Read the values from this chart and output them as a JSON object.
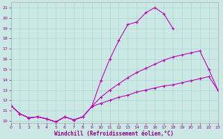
{
  "xlabel": "Windchill (Refroidissement éolien,°C)",
  "bg_color": "#cce8e4",
  "line_color": "#bb00bb",
  "xlim": [
    0,
    23
  ],
  "ylim": [
    9.8,
    21.5
  ],
  "xticks": [
    0,
    1,
    2,
    3,
    4,
    5,
    6,
    7,
    8,
    9,
    10,
    11,
    12,
    13,
    14,
    15,
    16,
    17,
    18,
    19,
    20,
    21,
    22,
    23
  ],
  "yticks": [
    10,
    11,
    12,
    13,
    14,
    15,
    16,
    17,
    18,
    19,
    20,
    21
  ],
  "grid_color": "#aad8d0",
  "curve1_x": [
    0,
    1,
    2,
    3,
    4,
    5,
    6,
    7,
    8,
    9,
    10,
    11,
    12,
    13,
    14,
    15,
    16,
    17,
    18
  ],
  "curve1_y": [
    11.5,
    10.7,
    10.3,
    10.4,
    10.2,
    9.9,
    10.4,
    10.1,
    10.4,
    11.4,
    13.9,
    16.0,
    17.8,
    19.35,
    19.6,
    20.5,
    21.0,
    20.4,
    19.0
  ],
  "curve2_x": [
    0,
    1,
    2,
    3,
    4,
    5,
    6,
    7,
    8,
    9,
    10,
    11,
    12,
    13,
    14,
    15,
    16,
    17,
    18,
    19,
    20,
    21,
    22,
    23
  ],
  "curve2_y": [
    11.5,
    10.7,
    10.3,
    10.4,
    10.2,
    9.9,
    10.4,
    10.1,
    10.4,
    11.4,
    12.3,
    13.0,
    13.6,
    14.2,
    14.7,
    15.1,
    15.5,
    15.9,
    16.2,
    16.4,
    16.6,
    16.8,
    15.0,
    13.0
  ],
  "curve3_x": [
    0,
    1,
    2,
    3,
    4,
    5,
    6,
    7,
    8,
    9,
    10,
    11,
    12,
    13,
    14,
    15,
    16,
    17,
    18,
    19,
    20,
    21,
    22,
    23
  ],
  "curve3_y": [
    11.5,
    10.7,
    10.3,
    10.4,
    10.2,
    9.9,
    10.4,
    10.1,
    10.4,
    11.4,
    11.7,
    12.0,
    12.3,
    12.5,
    12.8,
    13.0,
    13.2,
    13.4,
    13.5,
    13.7,
    13.9,
    14.1,
    14.3,
    13.0
  ]
}
